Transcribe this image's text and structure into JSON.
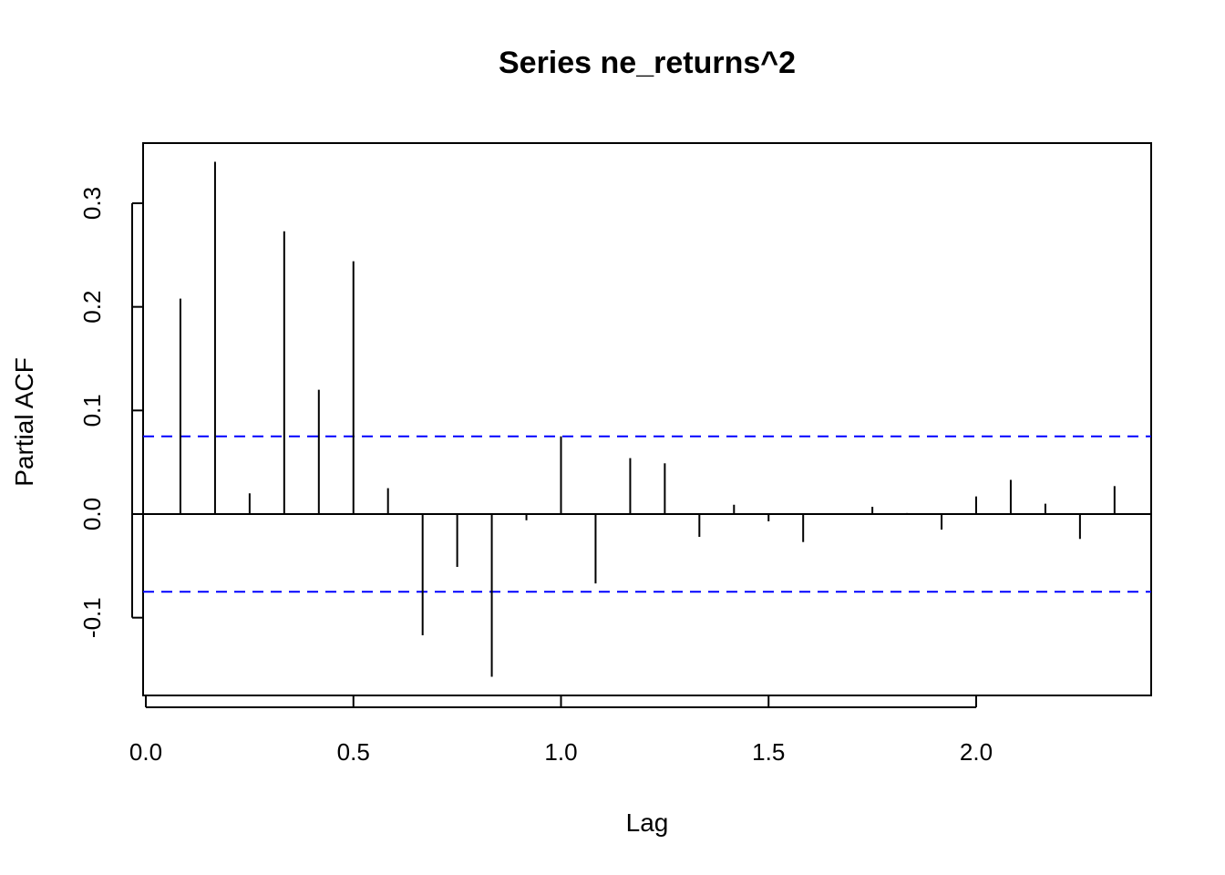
{
  "chart_data": {
    "type": "bar",
    "title": "Series  ne_returns^2",
    "xlabel": "Lag",
    "ylabel": "Partial ACF",
    "xlim": [
      0.0,
      2.42
    ],
    "ylim": [
      -0.175,
      0.36
    ],
    "x_ticks": [
      0.0,
      0.5,
      1.0,
      1.5,
      2.0
    ],
    "x_tick_labels": [
      "0.0",
      "0.5",
      "1.0",
      "1.5",
      "2.0"
    ],
    "y_ticks": [
      -0.1,
      0.0,
      0.1,
      0.2,
      0.3
    ],
    "y_tick_labels": [
      "-0.1",
      "0.0",
      "0.1",
      "0.2",
      "0.3"
    ],
    "confidence_band": 0.075,
    "band_color": "#0000ff",
    "line_color": "#000000",
    "grid": false,
    "series": [
      {
        "x": [
          0.0833,
          0.1667,
          0.25,
          0.3333,
          0.4167,
          0.5,
          0.5833,
          0.6667,
          0.75,
          0.8333,
          0.9167,
          1.0,
          1.0833,
          1.1667,
          1.25,
          1.3333,
          1.4167,
          1.5,
          1.5833,
          1.6667,
          1.75,
          1.8333,
          1.9167,
          2.0,
          2.0833,
          2.1667,
          2.25,
          2.3333
        ],
        "values": [
          0.208,
          0.34,
          0.02,
          0.273,
          0.12,
          0.244,
          0.025,
          -0.117,
          -0.051,
          -0.157,
          -0.006,
          0.075,
          -0.067,
          0.054,
          0.049,
          -0.022,
          0.009,
          -0.007,
          -0.027,
          0.0005,
          0.007,
          0.001,
          -0.015,
          0.017,
          0.033,
          0.01,
          -0.024,
          0.027
        ]
      }
    ]
  }
}
